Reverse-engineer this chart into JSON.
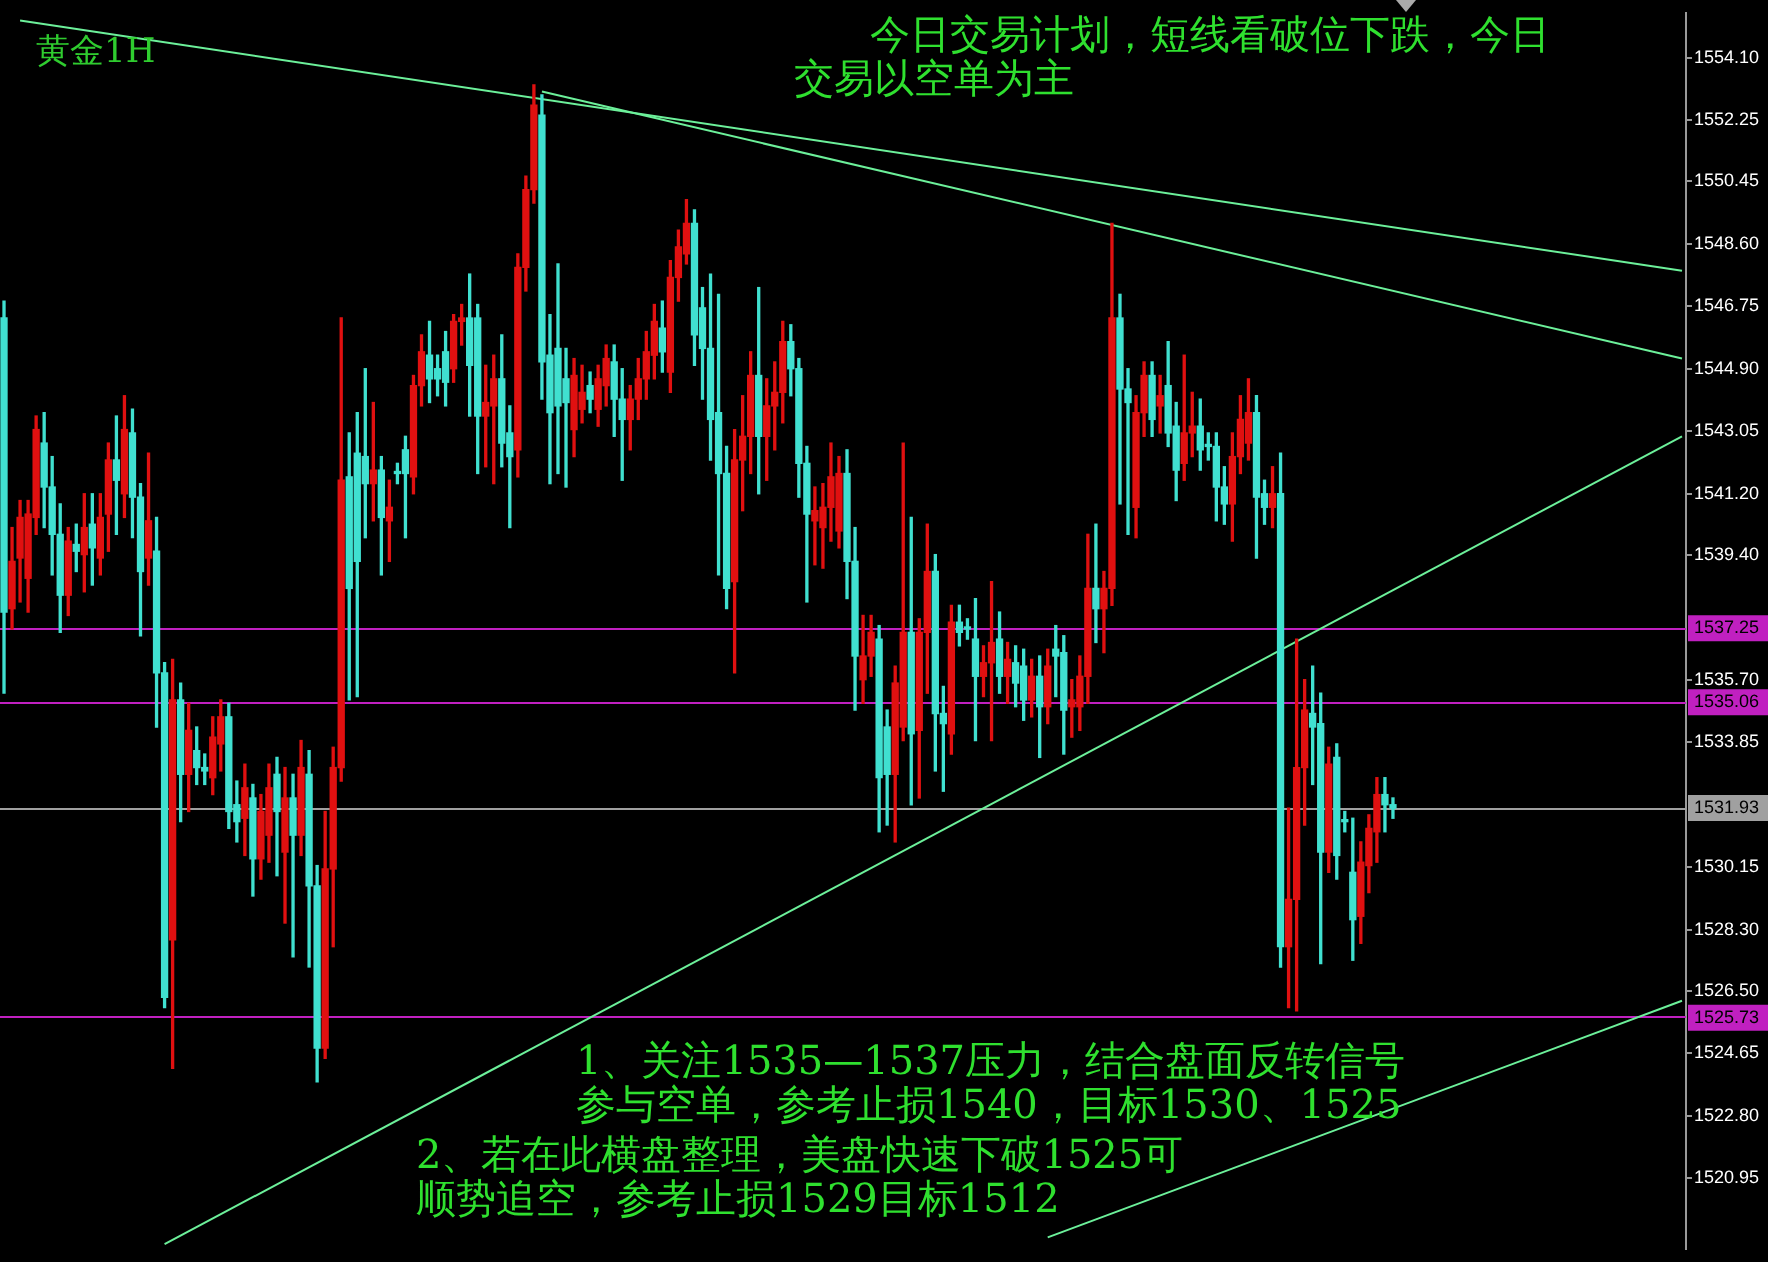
{
  "chart_data": {
    "type": "candlestick",
    "title": "黄金1H",
    "annotations": [
      "今日交易计划，短线看破位下跌，今日交易以空单为主",
      "1、关注1535—1537压力，结合盘面反转信号参与空单，参考止损1540，目标1530、1525",
      "2、若在此横盘整理，美盘快速下破1525可顺势追空，参考止损1529目标1512"
    ],
    "categories": [
      null,
      null,
      null,
      null,
      null,
      null,
      null,
      null,
      null,
      null,
      null,
      null,
      null,
      null,
      null,
      null,
      null,
      null,
      null,
      null,
      null,
      null,
      null,
      null,
      null,
      null,
      null,
      null,
      null,
      null,
      null,
      null,
      null,
      null,
      null,
      null,
      null,
      null,
      null,
      null,
      null,
      null,
      null,
      null,
      null,
      null,
      null,
      null,
      null,
      null,
      null,
      null,
      null,
      null,
      null,
      null,
      null,
      null,
      null,
      null,
      null,
      null,
      null,
      null,
      null,
      null,
      null,
      null,
      null,
      null,
      null,
      null,
      null,
      null,
      null,
      null,
      null,
      null,
      null,
      null,
      null,
      null,
      null,
      null,
      null,
      null,
      null,
      null,
      null,
      null,
      null,
      null,
      null,
      null,
      null,
      null,
      null,
      null,
      null,
      null,
      null,
      null,
      null,
      null,
      null,
      null,
      null,
      null,
      null,
      null,
      null,
      null,
      null,
      null,
      null,
      null,
      null,
      null,
      null,
      null,
      null,
      null,
      null,
      null,
      null,
      null,
      null,
      null,
      null,
      null,
      null,
      null,
      null,
      null,
      null,
      null,
      null,
      null,
      null,
      null,
      null,
      null,
      null,
      null,
      null,
      null,
      null,
      null,
      null,
      null,
      null,
      null,
      null,
      null,
      null,
      null,
      null,
      null,
      null,
      null,
      null,
      null,
      null,
      null,
      null,
      null,
      null,
      null,
      null,
      null,
      null,
      null,
      null,
      null,
      null,
      null,
      null,
      null,
      null,
      null,
      null,
      null,
      null,
      null,
      null,
      null,
      null,
      null,
      null,
      null,
      null,
      null,
      null,
      null,
      null,
      null,
      null,
      null,
      null,
      null,
      null,
      null,
      null,
      null,
      null,
      null,
      null,
      null,
      null,
      null
    ],
    "ohlc": [
      [
        1546.4,
        1546.9,
        1535.3,
        1537.7
      ],
      [
        1537.8,
        1540.2,
        1537.2,
        1539.2
      ],
      [
        1539.3,
        1541.0,
        1538.0,
        1540.5
      ],
      [
        1538.7,
        1541.0,
        1537.7,
        1540.6
      ],
      [
        1540.5,
        1543.5,
        1540.0,
        1543.1
      ],
      [
        1542.7,
        1543.6,
        1540.2,
        1541.4
      ],
      [
        1541.4,
        1542.3,
        1538.8,
        1540.0
      ],
      [
        1540.0,
        1540.9,
        1537.1,
        1538.2
      ],
      [
        1538.2,
        1540.2,
        1537.6,
        1539.8
      ],
      [
        1539.7,
        1540.3,
        1538.9,
        1539.5
      ],
      [
        1539.4,
        1541.2,
        1538.3,
        1540.2
      ],
      [
        1540.3,
        1541.2,
        1538.5,
        1539.6
      ],
      [
        1539.3,
        1541.2,
        1538.8,
        1540.5
      ],
      [
        1540.6,
        1542.7,
        1539.5,
        1542.2
      ],
      [
        1542.2,
        1543.5,
        1540.0,
        1541.6
      ],
      [
        1541.2,
        1544.1,
        1540.5,
        1543.1
      ],
      [
        1543.0,
        1543.7,
        1539.9,
        1541.1
      ],
      [
        1541.1,
        1541.5,
        1537.0,
        1538.9
      ],
      [
        1539.3,
        1542.4,
        1538.5,
        1540.4
      ],
      [
        1539.5,
        1540.5,
        1534.3,
        1535.9
      ],
      [
        1535.9,
        1536.2,
        1526.0,
        1526.3
      ],
      [
        1528.0,
        1536.3,
        1524.2,
        1535.1
      ],
      [
        1535.1,
        1535.6,
        1531.5,
        1532.9
      ],
      [
        1532.9,
        1535.0,
        1531.8,
        1534.2
      ],
      [
        1533.6,
        1534.3,
        1532.6,
        1533.1
      ],
      [
        1533.1,
        1533.5,
        1532.6,
        1533.0
      ],
      [
        1532.8,
        1534.6,
        1532.3,
        1534.0
      ],
      [
        1533.8,
        1535.1,
        1533.0,
        1534.6
      ],
      [
        1534.6,
        1535.0,
        1531.3,
        1531.8
      ],
      [
        1532.0,
        1532.7,
        1530.9,
        1531.5
      ],
      [
        1531.6,
        1533.2,
        1530.5,
        1532.5
      ],
      [
        1532.2,
        1532.6,
        1529.3,
        1530.4
      ],
      [
        1530.4,
        1532.3,
        1529.8,
        1531.8
      ],
      [
        1531.1,
        1533.2,
        1530.3,
        1532.5
      ],
      [
        1532.9,
        1533.4,
        1529.9,
        1531.8
      ],
      [
        1530.6,
        1533.1,
        1528.5,
        1532.2
      ],
      [
        1532.2,
        1532.9,
        1527.5,
        1531.1
      ],
      [
        1531.1,
        1533.9,
        1530.5,
        1533.1
      ],
      [
        1532.9,
        1533.6,
        1527.2,
        1529.6
      ],
      [
        1529.6,
        1530.2,
        1523.8,
        1524.8
      ],
      [
        1524.8,
        1531.8,
        1524.5,
        1530.1
      ],
      [
        1530.1,
        1533.7,
        1527.8,
        1533.1
      ],
      [
        1533.1,
        1546.4,
        1532.7,
        1541.6
      ],
      [
        1541.7,
        1543.0,
        1535.1,
        1538.4
      ],
      [
        1542.4,
        1543.6,
        1535.2,
        1539.2
      ],
      [
        1542.3,
        1544.9,
        1539.9,
        1541.5
      ],
      [
        1541.5,
        1543.9,
        1540.4,
        1541.9
      ],
      [
        1541.9,
        1542.3,
        1538.8,
        1540.5
      ],
      [
        1540.4,
        1541.6,
        1539.2,
        1540.8
      ],
      [
        1541.8,
        1542.1,
        1541.5,
        1541.8
      ],
      [
        1542.5,
        1542.9,
        1539.9,
        1541.8
      ],
      [
        1541.7,
        1544.7,
        1541.2,
        1544.4
      ],
      [
        1544.4,
        1545.9,
        1543.8,
        1545.4
      ],
      [
        1545.3,
        1546.3,
        1543.9,
        1544.6
      ],
      [
        1544.9,
        1545.3,
        1544.1,
        1544.6
      ],
      [
        1545.4,
        1546.0,
        1543.8,
        1544.5
      ],
      [
        1544.9,
        1546.5,
        1544.5,
        1546.3
      ],
      [
        1546.3,
        1546.8,
        1545.6,
        1546.4
      ],
      [
        1546.4,
        1547.7,
        1543.5,
        1545.0
      ],
      [
        1546.4,
        1546.8,
        1541.8,
        1543.5
      ],
      [
        1543.5,
        1545.0,
        1542.0,
        1543.9
      ],
      [
        1543.8,
        1545.3,
        1541.5,
        1544.6
      ],
      [
        1544.6,
        1545.9,
        1542.0,
        1542.7
      ],
      [
        1543.0,
        1543.8,
        1540.2,
        1542.3
      ],
      [
        1542.5,
        1548.3,
        1541.7,
        1547.9
      ],
      [
        1547.9,
        1550.6,
        1547.2,
        1550.2
      ],
      [
        1550.2,
        1553.3,
        1549.8,
        1552.7
      ],
      [
        1552.4,
        1553.0,
        1544.0,
        1545.1
      ],
      [
        1545.3,
        1546.5,
        1541.5,
        1543.6
      ],
      [
        1545.5,
        1548.0,
        1541.8,
        1543.8
      ],
      [
        1544.6,
        1545.5,
        1541.4,
        1543.9
      ],
      [
        1543.1,
        1545.2,
        1542.3,
        1544.7
      ],
      [
        1543.7,
        1545.0,
        1543.3,
        1544.2
      ],
      [
        1544.4,
        1544.8,
        1543.6,
        1544.0
      ],
      [
        1543.7,
        1545.0,
        1543.2,
        1544.6
      ],
      [
        1544.4,
        1545.6,
        1543.8,
        1545.2
      ],
      [
        1545.1,
        1545.6,
        1542.9,
        1544.0
      ],
      [
        1544.0,
        1544.9,
        1541.6,
        1543.4
      ],
      [
        1543.4,
        1544.4,
        1542.5,
        1544.0
      ],
      [
        1544.0,
        1545.2,
        1543.4,
        1544.6
      ],
      [
        1544.6,
        1546.0,
        1544.0,
        1545.4
      ],
      [
        1545.3,
        1546.8,
        1544.6,
        1546.3
      ],
      [
        1546.1,
        1546.9,
        1544.8,
        1545.4
      ],
      [
        1544.8,
        1548.1,
        1544.2,
        1547.6
      ],
      [
        1547.6,
        1549.0,
        1546.9,
        1548.5
      ],
      [
        1548.3,
        1549.9,
        1548.0,
        1549.2
      ],
      [
        1549.2,
        1549.6,
        1545.0,
        1545.9
      ],
      [
        1546.7,
        1547.3,
        1544.0,
        1545.5
      ],
      [
        1545.5,
        1547.7,
        1542.2,
        1543.4
      ],
      [
        1543.6,
        1547.1,
        1538.8,
        1541.8
      ],
      [
        1541.8,
        1542.6,
        1537.8,
        1538.4
      ],
      [
        1538.6,
        1543.1,
        1535.9,
        1542.2
      ],
      [
        1542.2,
        1544.1,
        1540.7,
        1542.9
      ],
      [
        1542.9,
        1545.4,
        1541.8,
        1544.7
      ],
      [
        1544.7,
        1547.3,
        1541.2,
        1542.9
      ],
      [
        1542.9,
        1544.6,
        1541.6,
        1543.8
      ],
      [
        1543.8,
        1545.1,
        1542.5,
        1544.2
      ],
      [
        1544.2,
        1546.3,
        1543.3,
        1545.7
      ],
      [
        1545.7,
        1546.2,
        1544.1,
        1544.9
      ],
      [
        1544.9,
        1545.2,
        1541.1,
        1542.1
      ],
      [
        1542.1,
        1542.6,
        1538.0,
        1540.6
      ],
      [
        1540.4,
        1541.4,
        1539.1,
        1540.7
      ],
      [
        1540.2,
        1541.5,
        1539.0,
        1540.8
      ],
      [
        1540.8,
        1542.7,
        1539.8,
        1541.7
      ],
      [
        1540.1,
        1542.3,
        1539.6,
        1541.8
      ],
      [
        1541.8,
        1542.5,
        1538.1,
        1539.2
      ],
      [
        1539.2,
        1540.2,
        1534.8,
        1536.4
      ],
      [
        1535.7,
        1537.6,
        1535.0,
        1536.4
      ],
      [
        1536.4,
        1537.6,
        1535.8,
        1537.1
      ],
      [
        1536.9,
        1537.3,
        1531.2,
        1532.8
      ],
      [
        1534.3,
        1534.8,
        1531.4,
        1532.9
      ],
      [
        1532.9,
        1536.1,
        1530.9,
        1535.6
      ],
      [
        1534.3,
        1542.7,
        1533.9,
        1537.1
      ],
      [
        1537.1,
        1540.5,
        1532.0,
        1534.1
      ],
      [
        1534.2,
        1537.5,
        1532.2,
        1537.1
      ],
      [
        1537.1,
        1540.3,
        1535.3,
        1538.9
      ],
      [
        1538.9,
        1539.4,
        1533.0,
        1534.7
      ],
      [
        1534.7,
        1535.5,
        1532.4,
        1534.4
      ],
      [
        1534.1,
        1537.9,
        1533.5,
        1537.4
      ],
      [
        1537.4,
        1537.9,
        1536.7,
        1537.1
      ],
      [
        1537.2,
        1537.5,
        1536.9,
        1537.2
      ],
      [
        1536.9,
        1538.1,
        1533.9,
        1535.8
      ],
      [
        1535.8,
        1536.7,
        1535.2,
        1536.2
      ],
      [
        1536.2,
        1538.6,
        1533.9,
        1536.8
      ],
      [
        1536.9,
        1537.7,
        1535.3,
        1535.8
      ],
      [
        1535.8,
        1536.8,
        1535.0,
        1536.3
      ],
      [
        1536.2,
        1536.7,
        1534.9,
        1535.6
      ],
      [
        1536.1,
        1536.6,
        1534.5,
        1535.1
      ],
      [
        1535.1,
        1536.3,
        1534.6,
        1535.8
      ],
      [
        1535.8,
        1536.4,
        1533.4,
        1534.9
      ],
      [
        1534.9,
        1536.6,
        1534.4,
        1536.1
      ],
      [
        1536.6,
        1537.3,
        1535.2,
        1536.4
      ],
      [
        1536.5,
        1537.0,
        1533.5,
        1534.8
      ],
      [
        1534.9,
        1535.7,
        1534.0,
        1535.1
      ],
      [
        1534.9,
        1536.4,
        1534.2,
        1535.8
      ],
      [
        1535.8,
        1540.0,
        1535.0,
        1538.4
      ],
      [
        1538.4,
        1540.3,
        1536.8,
        1537.8
      ],
      [
        1537.8,
        1538.9,
        1536.5,
        1538.4
      ],
      [
        1538.4,
        1549.2,
        1537.9,
        1546.4
      ],
      [
        1546.4,
        1547.1,
        1540.9,
        1544.3
      ],
      [
        1544.3,
        1544.9,
        1540.0,
        1543.9
      ],
      [
        1540.8,
        1544.1,
        1539.9,
        1543.6
      ],
      [
        1543.6,
        1545.1,
        1542.9,
        1544.7
      ],
      [
        1544.7,
        1545.1,
        1542.9,
        1543.4
      ],
      [
        1543.8,
        1544.7,
        1543.0,
        1544.1
      ],
      [
        1544.4,
        1545.7,
        1542.6,
        1543.0
      ],
      [
        1543.2,
        1543.9,
        1541.0,
        1541.9
      ],
      [
        1542.1,
        1545.3,
        1541.6,
        1543.0
      ],
      [
        1543.0,
        1544.2,
        1542.3,
        1543.2
      ],
      [
        1543.2,
        1544.0,
        1541.9,
        1542.5
      ],
      [
        1542.6,
        1543.0,
        1542.2,
        1542.6
      ],
      [
        1542.6,
        1543.0,
        1540.4,
        1541.4
      ],
      [
        1541.4,
        1542.0,
        1540.3,
        1540.9
      ],
      [
        1540.9,
        1543.0,
        1539.8,
        1542.3
      ],
      [
        1542.3,
        1544.1,
        1541.8,
        1543.4
      ],
      [
        1542.7,
        1544.6,
        1542.2,
        1543.6
      ],
      [
        1543.6,
        1544.1,
        1539.3,
        1541.1
      ],
      [
        1541.2,
        1541.6,
        1540.3,
        1540.8
      ],
      [
        1540.8,
        1542.0,
        1540.2,
        1541.2
      ],
      [
        1541.2,
        1542.4,
        1527.2,
        1527.8
      ],
      [
        1527.8,
        1531.9,
        1526.0,
        1529.2
      ],
      [
        1529.2,
        1536.9,
        1525.9,
        1533.1
      ],
      [
        1533.1,
        1535.7,
        1531.4,
        1534.8
      ],
      [
        1534.7,
        1536.1,
        1532.6,
        1534.3
      ],
      [
        1534.4,
        1535.3,
        1527.3,
        1530.6
      ],
      [
        1530.6,
        1533.7,
        1530.0,
        1533.2
      ],
      [
        1533.4,
        1533.8,
        1529.8,
        1530.5
      ],
      [
        1531.5,
        1531.8,
        1531.2,
        1531.5
      ],
      [
        1530.0,
        1531.6,
        1527.4,
        1528.6
      ],
      [
        1528.7,
        1530.9,
        1527.9,
        1530.3
      ],
      [
        1530.2,
        1531.7,
        1529.4,
        1531.3
      ],
      [
        1531.2,
        1532.8,
        1530.3,
        1532.3
      ],
      [
        1532.3,
        1532.8,
        1531.2,
        1532.0
      ],
      [
        1532.0,
        1532.2,
        1531.6,
        1531.9
      ],
      null,
      null,
      null,
      null,
      null,
      null,
      null,
      null,
      null,
      null,
      null,
      null,
      null,
      null,
      null,
      null,
      null,
      null,
      null,
      null,
      null,
      null,
      null,
      null,
      null,
      null,
      null,
      null,
      null,
      null,
      null,
      null,
      null,
      null,
      null,
      null
    ],
    "colors": [
      "#40e0d0",
      "#e01010",
      "#e01010",
      "#e01010",
      "#e01010",
      "#40e0d0",
      "#40e0d0",
      "#40e0d0",
      "#e01010",
      "#40e0d0",
      "#e01010",
      "#40e0d0",
      "#e01010",
      "#e01010",
      "#40e0d0",
      "#e01010",
      "#40e0d0",
      "#40e0d0",
      "#e01010",
      "#40e0d0",
      "#40e0d0",
      "#e01010",
      "#40e0d0",
      "#e01010",
      "#40e0d0",
      "#40e0d0",
      "#e01010",
      "#e01010",
      "#40e0d0",
      "#40e0d0",
      "#e01010",
      "#40e0d0",
      "#e01010",
      "#e01010",
      "#40e0d0",
      "#e01010",
      "#40e0d0",
      "#e01010",
      "#40e0d0",
      "#40e0d0",
      "#e01010",
      "#e01010",
      "#e01010",
      "#40e0d0",
      "#40e0d0",
      "#40e0d0",
      "#e01010",
      "#40e0d0",
      "#e01010",
      "#40e0d0",
      "#40e0d0",
      "#e01010",
      "#e01010",
      "#40e0d0",
      "#40e0d0",
      "#40e0d0",
      "#e01010",
      "#e01010",
      "#40e0d0",
      "#40e0d0",
      "#e01010",
      "#e01010",
      "#40e0d0",
      "#40e0d0",
      "#e01010",
      "#e01010",
      "#e01010",
      "#40e0d0",
      "#40e0d0",
      "#40e0d0",
      "#40e0d0",
      "#e01010",
      "#e01010",
      "#40e0d0",
      "#e01010",
      "#e01010",
      "#40e0d0",
      "#40e0d0",
      "#e01010",
      "#e01010",
      "#e01010",
      "#e01010",
      "#40e0d0",
      "#e01010",
      "#e01010",
      "#e01010",
      "#40e0d0",
      "#40e0d0",
      "#40e0d0",
      "#40e0d0",
      "#40e0d0",
      "#e01010",
      "#e01010",
      "#e01010",
      "#40e0d0",
      "#e01010",
      "#e01010",
      "#e01010",
      "#40e0d0",
      "#40e0d0",
      "#40e0d0",
      "#e01010",
      "#e01010",
      "#e01010",
      "#e01010",
      "#40e0d0",
      "#40e0d0",
      "#e01010",
      "#e01010",
      "#40e0d0",
      "#40e0d0",
      "#e01010",
      "#e01010",
      "#40e0d0",
      "#e01010",
      "#e01010",
      "#40e0d0",
      "#40e0d0",
      "#e01010",
      "#40e0d0",
      "#40e0d0",
      "#40e0d0",
      "#e01010",
      "#e01010",
      "#40e0d0",
      "#e01010",
      "#40e0d0",
      "#40e0d0",
      "#e01010",
      "#40e0d0",
      "#e01010",
      "#40e0d0",
      "#40e0d0",
      "#e01010",
      "#e01010",
      "#e01010",
      "#40e0d0",
      "#e01010",
      "#e01010",
      "#40e0d0",
      "#40e0d0",
      "#e01010",
      "#e01010",
      "#40e0d0",
      "#e01010",
      "#40e0d0",
      "#40e0d0",
      "#e01010",
      "#e01010",
      "#40e0d0",
      "#40e0d0",
      "#40e0d0",
      "#40e0d0",
      "#e01010",
      "#e01010",
      "#e01010",
      "#40e0d0",
      "#40e0d0",
      "#e01010",
      "#40e0d0",
      "#e01010",
      "#e01010",
      "#e01010",
      "#40e0d0",
      "#40e0d0",
      "#e01010",
      "#40e0d0",
      "#40e0d0",
      "#40e0d0",
      "#e01010",
      "#e01010",
      "#e01010",
      "#40e0d0",
      "#40e0d0",
      null,
      null,
      null,
      null,
      null,
      null,
      null,
      null,
      null,
      null,
      null,
      null,
      null,
      null,
      null,
      null,
      null,
      null,
      null,
      null,
      null,
      null,
      null,
      null,
      null,
      null,
      null,
      null,
      null,
      null,
      null,
      null,
      null,
      null,
      null,
      null
    ],
    "series": [
      {
        "type": "line",
        "color": "#6cf09a",
        "values": [
          null,
          null,
          1555.2,
          null,
          null,
          null,
          null,
          null,
          null,
          null,
          null,
          null,
          null,
          null,
          null,
          null,
          null,
          null,
          null,
          null,
          null,
          null,
          null,
          null,
          null,
          null,
          null,
          null,
          null,
          null,
          null,
          null,
          null,
          null,
          null,
          null,
          null,
          null,
          null,
          null,
          null,
          null,
          null,
          null,
          null,
          null,
          null,
          null,
          null,
          null,
          null,
          null,
          null,
          null,
          null,
          null,
          null,
          null,
          null,
          null,
          null,
          null,
          null,
          null,
          null,
          null,
          null,
          null,
          null,
          null,
          null,
          null,
          null,
          null,
          null,
          null,
          null,
          null,
          null,
          null,
          null,
          null,
          null,
          null,
          null,
          null,
          null,
          null,
          null,
          null,
          null,
          null,
          null,
          null,
          null,
          null,
          null,
          null,
          null,
          null,
          null,
          null,
          null,
          null,
          null,
          null,
          null,
          null,
          null,
          null,
          null,
          null,
          null,
          null,
          null,
          null,
          null,
          null,
          null,
          null,
          null,
          null,
          null,
          null,
          null,
          null,
          null,
          null,
          null,
          null,
          null,
          null,
          null,
          null,
          null,
          null,
          null,
          null,
          null,
          null,
          null,
          null,
          null,
          null,
          null,
          null,
          null,
          null,
          null,
          null,
          null,
          null,
          null,
          null,
          null,
          null,
          null,
          null,
          null,
          null,
          null,
          null,
          null,
          null,
          null,
          null,
          null,
          null,
          null,
          null,
          null,
          null,
          null,
          null,
          null,
          null,
          null,
          null,
          null,
          null,
          null,
          null,
          null,
          null,
          null,
          null,
          null,
          null,
          null,
          null,
          null,
          null,
          null,
          null,
          null,
          null,
          null,
          null,
          null,
          null,
          null,
          null,
          null,
          null,
          null,
          null,
          null,
          null,
          null,
          1547.8
        ]
      },
      {
        "type": "line",
        "color": "#6cf09a",
        "values": [
          null,
          null,
          null,
          null,
          null,
          null,
          null,
          null,
          null,
          null,
          null,
          null,
          null,
          null,
          null,
          null,
          null,
          null,
          null,
          null,
          null,
          null,
          null,
          null,
          null,
          null,
          null,
          null,
          null,
          null,
          null,
          null,
          null,
          null,
          null,
          null,
          null,
          null,
          null,
          null,
          null,
          null,
          null,
          null,
          null,
          null,
          null,
          null,
          null,
          null,
          null,
          null,
          null,
          null,
          null,
          null,
          null,
          null,
          null,
          null,
          null,
          null,
          null,
          null,
          null,
          null,
          null,
          1553.1,
          null,
          null,
          null,
          null,
          null,
          null,
          null,
          null,
          null,
          null,
          null,
          null,
          null,
          null,
          null,
          null,
          null,
          null,
          null,
          null,
          null,
          null,
          null,
          null,
          null,
          null,
          null,
          null,
          null,
          null,
          null,
          null,
          null,
          null,
          null,
          null,
          null,
          null,
          null,
          null,
          null,
          null,
          null,
          null,
          null,
          null,
          null,
          null,
          null,
          null,
          null,
          null,
          null,
          null,
          null,
          null,
          null,
          null,
          null,
          null,
          null,
          null,
          null,
          null,
          null,
          null,
          null,
          null,
          null,
          null,
          null,
          null,
          null,
          null,
          null,
          null,
          null,
          null,
          null,
          null,
          null,
          null,
          null,
          null,
          null,
          null,
          null,
          null,
          null,
          null,
          null,
          null,
          null,
          null,
          null,
          null,
          null,
          null,
          null,
          null,
          null,
          null,
          null,
          null,
          null,
          null,
          null,
          null,
          null,
          null,
          null,
          null,
          null,
          null,
          null,
          null,
          null,
          null,
          null,
          null,
          null,
          null,
          null,
          null,
          null,
          null,
          null,
          null,
          null,
          null,
          null,
          null,
          null,
          null,
          null,
          null,
          null,
          null,
          null,
          null,
          null,
          1545.2
        ]
      },
      {
        "type": "line",
        "color": "#6cf09a",
        "values": [
          null,
          null,
          null,
          null,
          null,
          null,
          null,
          null,
          null,
          null,
          null,
          null,
          null,
          null,
          null,
          null,
          null,
          null,
          null,
          null,
          1519.0,
          null,
          null,
          null,
          null,
          null,
          null,
          null,
          null,
          null,
          null,
          null,
          null,
          null,
          null,
          null,
          null,
          null,
          null,
          null,
          null,
          null,
          null,
          null,
          null,
          null,
          null,
          null,
          null,
          null,
          null,
          null,
          null,
          null,
          null,
          null,
          null,
          null,
          null,
          null,
          null,
          null,
          null,
          null,
          null,
          null,
          null,
          null,
          null,
          null,
          null,
          null,
          null,
          null,
          null,
          null,
          null,
          null,
          null,
          null,
          null,
          null,
          null,
          null,
          null,
          null,
          null,
          null,
          null,
          null,
          null,
          null,
          null,
          null,
          null,
          null,
          null,
          null,
          null,
          null,
          null,
          null,
          null,
          null,
          null,
          null,
          null,
          null,
          null,
          null,
          null,
          null,
          null,
          null,
          null,
          null,
          null,
          null,
          null,
          null,
          null,
          null,
          null,
          null,
          null,
          null,
          null,
          null,
          null,
          null,
          null,
          null,
          null,
          null,
          null,
          null,
          null,
          null,
          null,
          null,
          null,
          null,
          null,
          null,
          null,
          null,
          null,
          null,
          null,
          null,
          null,
          null,
          null,
          null,
          null,
          null,
          null,
          null,
          null,
          null,
          null,
          null,
          null,
          null,
          null,
          null,
          null,
          null,
          null,
          null,
          null,
          null,
          null,
          null,
          null,
          null,
          null,
          null,
          null,
          null,
          null,
          null,
          null,
          null,
          null,
          null,
          null,
          null,
          null,
          null,
          null,
          null,
          null,
          null,
          null,
          null,
          null,
          null,
          null,
          null,
          null,
          null,
          null,
          null,
          null,
          null,
          null,
          null,
          null,
          1542.9
        ]
      },
      {
        "type": "line",
        "color": "#6cf09a",
        "values": [
          null,
          null,
          null,
          null,
          null,
          null,
          null,
          null,
          null,
          null,
          null,
          null,
          null,
          null,
          null,
          null,
          null,
          null,
          null,
          null,
          null,
          null,
          null,
          null,
          null,
          null,
          null,
          null,
          null,
          null,
          null,
          null,
          null,
          null,
          null,
          null,
          null,
          null,
          null,
          null,
          null,
          null,
          null,
          null,
          null,
          null,
          null,
          null,
          null,
          null,
          null,
          null,
          null,
          null,
          null,
          null,
          null,
          null,
          null,
          null,
          null,
          null,
          null,
          null,
          null,
          null,
          null,
          null,
          null,
          null,
          null,
          null,
          null,
          null,
          null,
          null,
          null,
          null,
          null,
          null,
          null,
          null,
          null,
          null,
          null,
          null,
          null,
          null,
          null,
          null,
          null,
          null,
          null,
          null,
          null,
          null,
          null,
          null,
          null,
          null,
          null,
          null,
          null,
          null,
          null,
          null,
          null,
          null,
          null,
          null,
          null,
          null,
          null,
          null,
          null,
          null,
          null,
          null,
          null,
          null,
          null,
          null,
          null,
          null,
          null,
          null,
          null,
          null,
          null,
          null,
          1519.2,
          null,
          null,
          null,
          null,
          null,
          null,
          null,
          null,
          null,
          null,
          null,
          null,
          null,
          null,
          null,
          null,
          null,
          null,
          null,
          null,
          null,
          null,
          null,
          null,
          null,
          null,
          null,
          null,
          null,
          null,
          null,
          null,
          null,
          null,
          null,
          null,
          null,
          null,
          null,
          null,
          null,
          null,
          null,
          null,
          null,
          null,
          null,
          null,
          null,
          null,
          null,
          null,
          null,
          null,
          null,
          null,
          null,
          null,
          null,
          null,
          null,
          null,
          null,
          null,
          null,
          null,
          null,
          null,
          null,
          null,
          null,
          null,
          null,
          null,
          null,
          null,
          null,
          null,
          1526.2
        ]
      }
    ],
    "ylim": [
      1518.85,
      1555.43
    ],
    "yticks": [
      {
        "value": 1554.1,
        "label": "1554.10"
      },
      1552.25,
      1550.45,
      {
        "value": 1548.6,
        "label": "1548.60"
      },
      1546.75,
      {
        "value": 1544.9,
        "label": "1544.90"
      },
      1543.05,
      {
        "value": 1541.2,
        "label": "1541.20"
      },
      {
        "value": 1539.4,
        "label": "1539.40"
      },
      {
        "value": 1535.7,
        "label": "1535.70"
      },
      1533.85,
      1530.15,
      {
        "value": 1528.3,
        "label": "1528.30"
      },
      {
        "value": 1526.5,
        "label": "1526.50"
      },
      1524.65,
      {
        "value": 1522.8,
        "label": "1522.80"
      },
      1520.95
    ],
    "ref_lines": [
      {
        "axis": "y",
        "value": 1537.25,
        "label": "1537.25",
        "color": "#c020c0"
      },
      {
        "axis": "y",
        "value": 1535.06,
        "label": "1535.06",
        "color": "#c020c0"
      },
      {
        "axis": "y",
        "value": 1531.93,
        "label": "1531.93",
        "color": "#a0a0a0"
      },
      {
        "axis": "y",
        "value": 1525.73,
        "label": "1525.73",
        "color": "#c020c0"
      }
    ],
    "tick_labels": "y",
    "grid": false,
    "legend": false
  }
}
